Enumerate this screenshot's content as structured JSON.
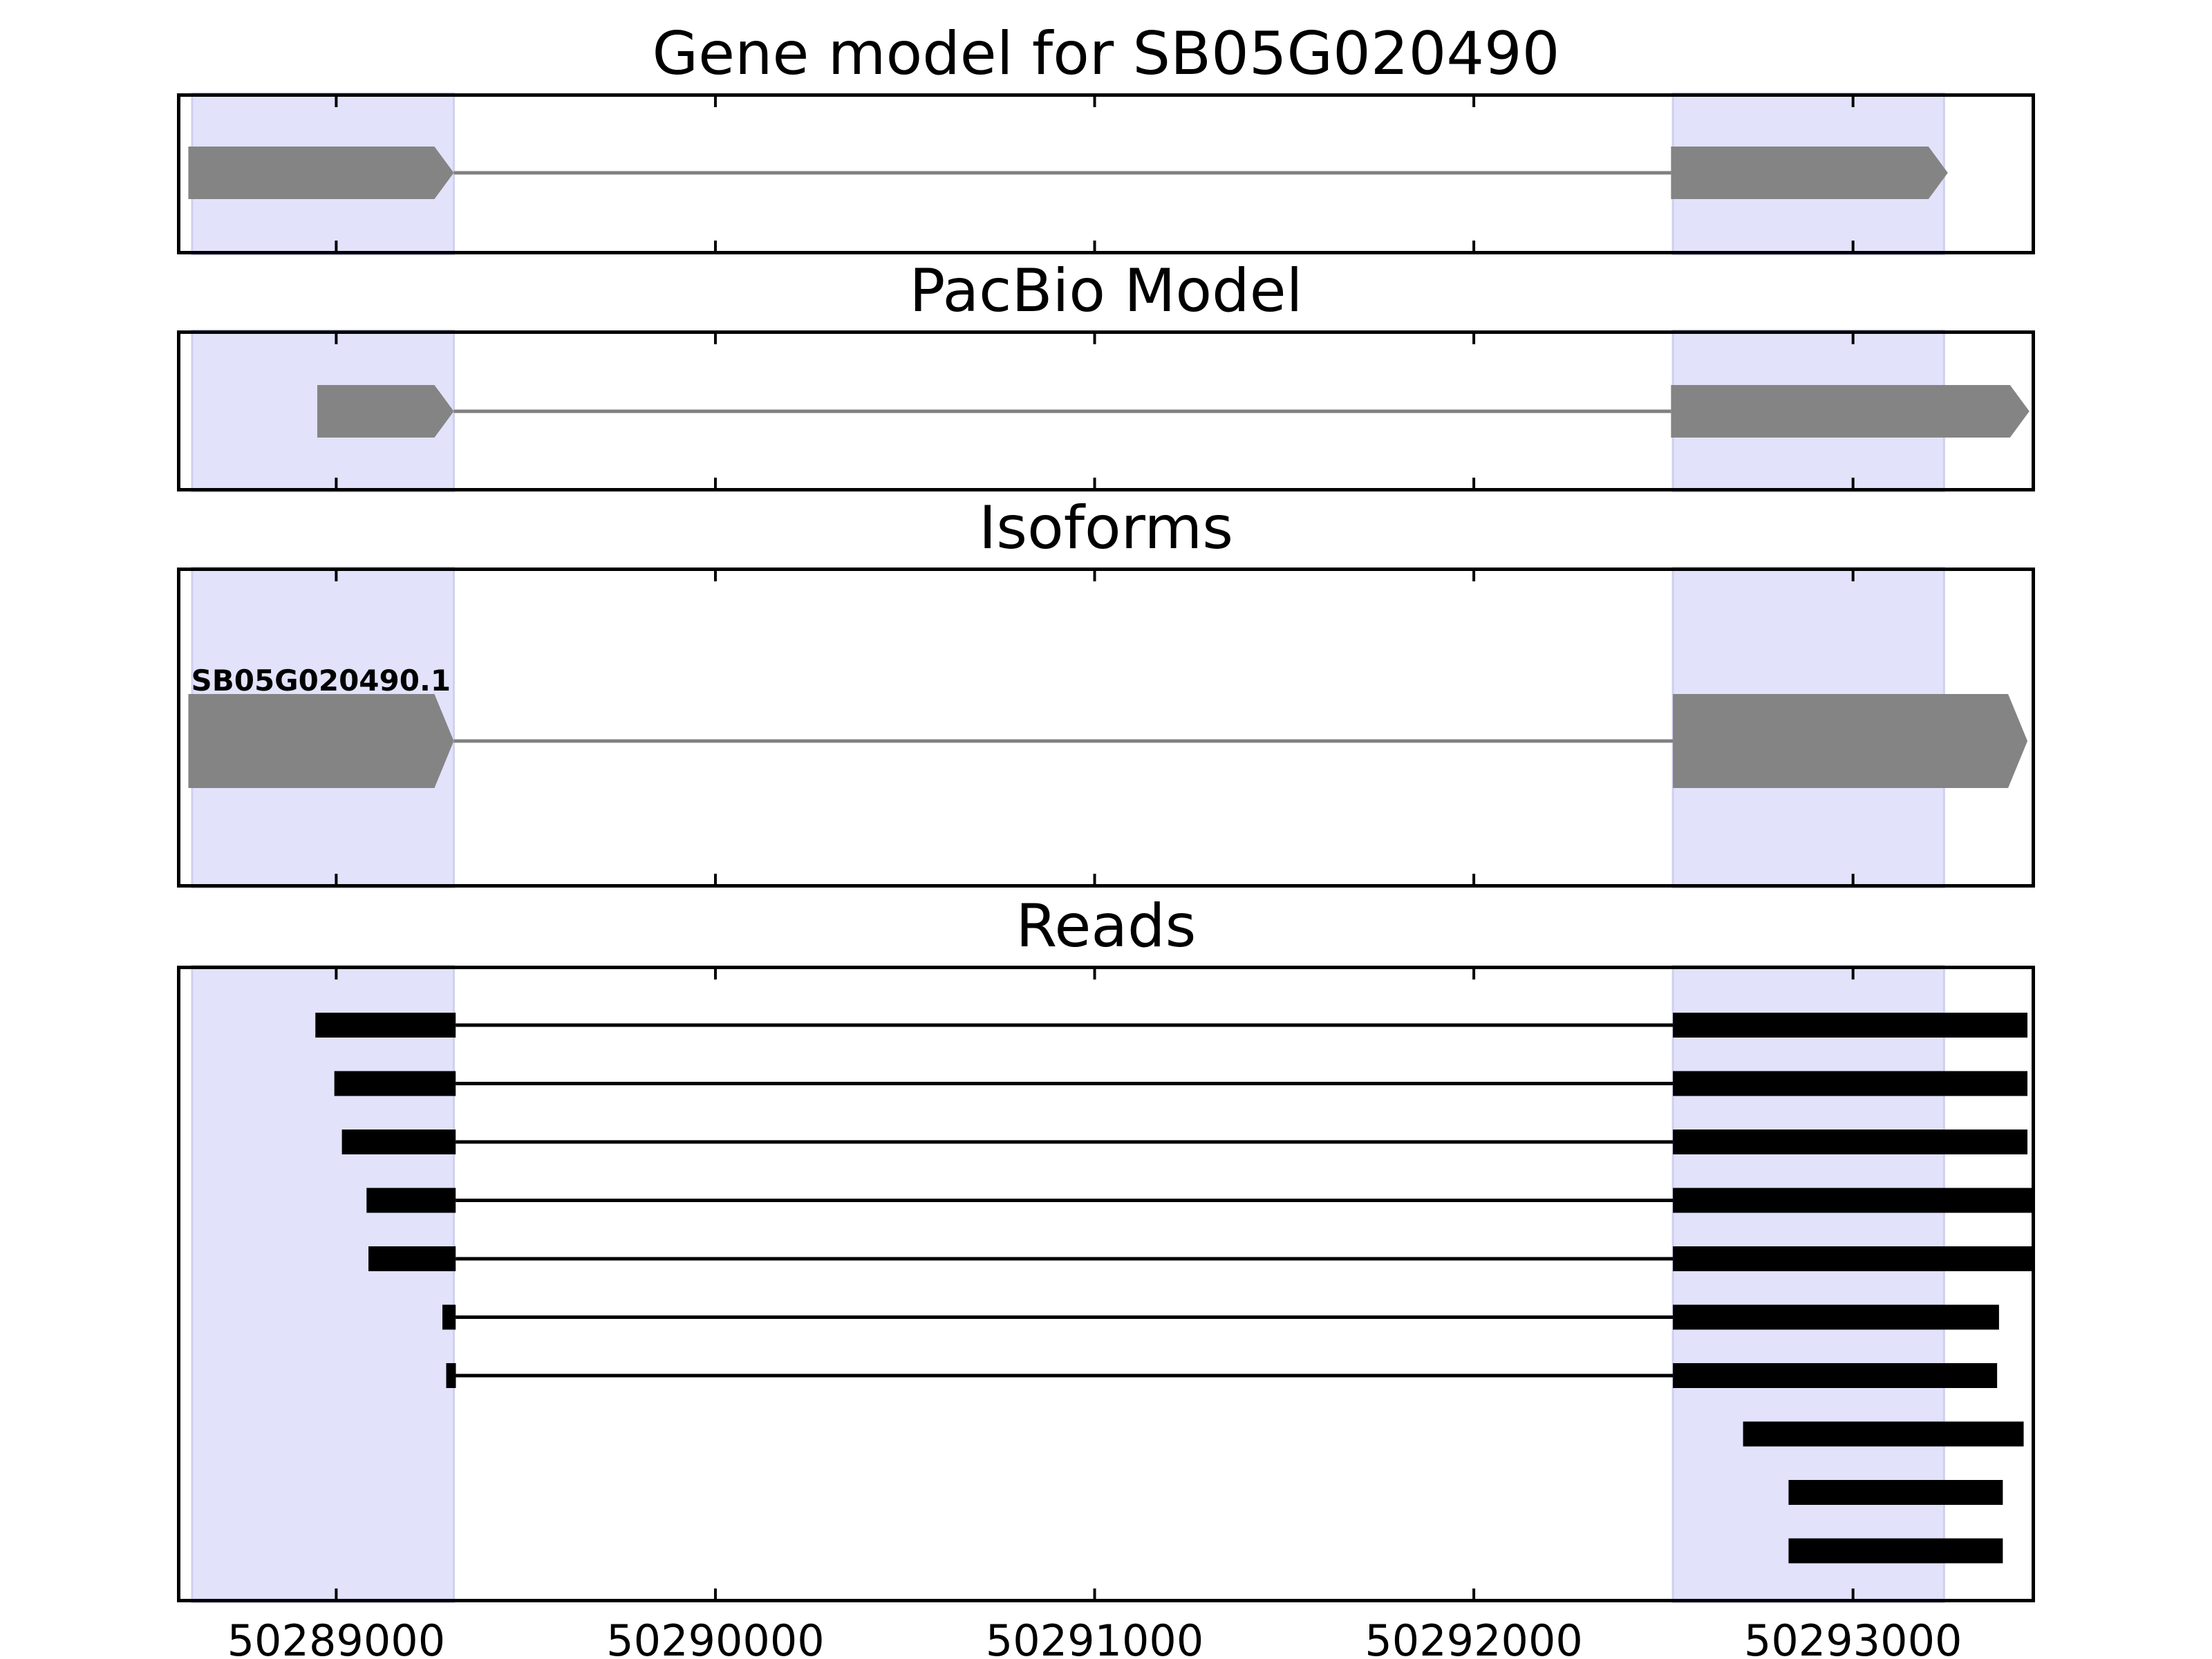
{
  "chart_data": {
    "type": "gene_track",
    "x_ticks": [
      50289000,
      50290000,
      50291000,
      50292000,
      50293000
    ],
    "x_tick_labels": [
      "50289000",
      "50290000",
      "50291000",
      "50292000",
      "50293000"
    ],
    "xlim": [
      50288580,
      50293480
    ],
    "highlight_regions": [
      [
        50288620,
        50289310
      ],
      [
        50292525,
        50293240
      ]
    ],
    "colors": {
      "highlight": "#e2e2fa",
      "highlight_edge": "#cfd0f0",
      "feature": "#848484",
      "intron_gray": "#808080",
      "read": "#000000",
      "frame": "#000000"
    },
    "panels": [
      {
        "id": "gene-model",
        "title": "Gene model for SB05G020490",
        "strand": "+",
        "exons": [
          [
            50288610,
            50289310
          ],
          [
            50292520,
            50293250
          ]
        ]
      },
      {
        "id": "pacbio-model",
        "title": "PacBio Model",
        "strand": "+",
        "exons": [
          [
            50288950,
            50289310
          ],
          [
            50292520,
            50293465
          ]
        ]
      },
      {
        "id": "isoforms",
        "title": "Isoforms",
        "isoforms": [
          {
            "name": "SB05G020490.1",
            "strand": "+",
            "exons": [
              [
                50288610,
                50289310
              ],
              [
                50292525,
                50293460
              ]
            ]
          }
        ]
      },
      {
        "id": "reads",
        "title": "Reads",
        "reads": [
          [
            [
              50288945,
              50289315
            ],
            [
              50292525,
              50293460
            ]
          ],
          [
            [
              50288995,
              50289315
            ],
            [
              50292525,
              50293460
            ]
          ],
          [
            [
              50289015,
              50289315
            ],
            [
              50292525,
              50293460
            ]
          ],
          [
            [
              50289080,
              50289315
            ],
            [
              50292525,
              50293475
            ]
          ],
          [
            [
              50289085,
              50289315
            ],
            [
              50292525,
              50293475
            ]
          ],
          [
            [
              50289280,
              50289315
            ],
            [
              50292525,
              50293385
            ]
          ],
          [
            [
              50289290,
              50289315
            ],
            [
              50292525,
              50293380
            ]
          ],
          [
            [
              50292710,
              50293450
            ]
          ],
          [
            [
              50292830,
              50293395
            ]
          ],
          [
            [
              50292830,
              50293395
            ]
          ]
        ]
      }
    ]
  }
}
